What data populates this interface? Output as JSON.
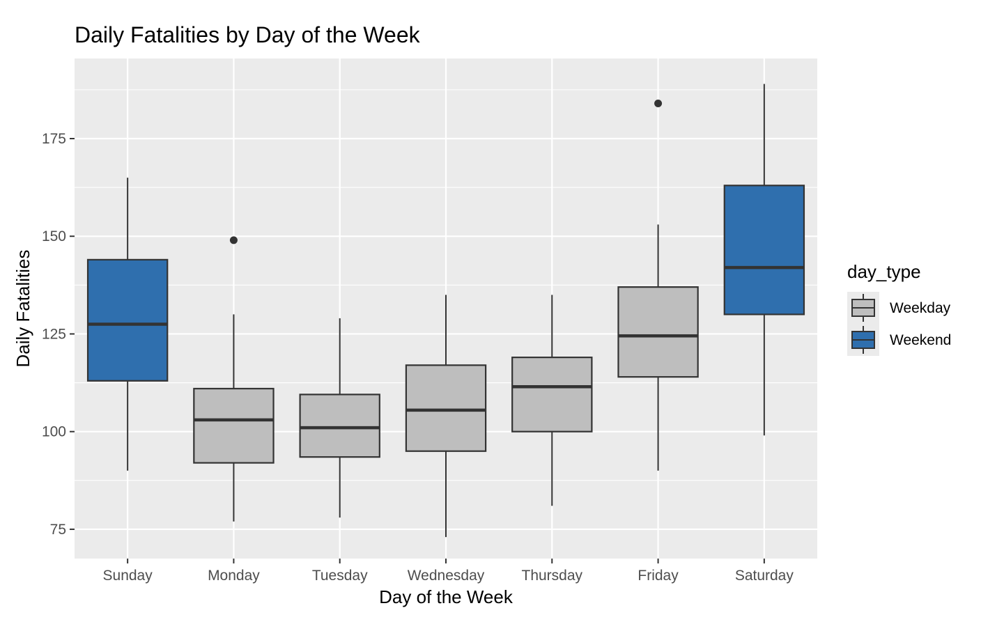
{
  "chart_data": {
    "type": "boxplot",
    "title": "Daily Fatalities by Day of the Week",
    "xlabel": "Day of the Week",
    "ylabel": "Daily Fatalities",
    "ylim": [
      67.5,
      195.5
    ],
    "yticks": [
      75,
      100,
      125,
      150,
      175
    ],
    "yminor": [
      87.5,
      112.5,
      137.5,
      162.5,
      187.5
    ],
    "grid": true,
    "legend": {
      "title": "day_type",
      "position": "right",
      "entries": [
        {
          "label": "Weekday",
          "color": "#bebebe"
        },
        {
          "label": "Weekend",
          "color": "#2f6fae"
        }
      ]
    },
    "categories": [
      "Sunday",
      "Monday",
      "Tuesday",
      "Wednesday",
      "Thursday",
      "Friday",
      "Saturday"
    ],
    "boxes": [
      {
        "day": "Sunday",
        "day_type": "Weekend",
        "min": 90,
        "q1": 113,
        "median": 127.5,
        "q3": 144,
        "max": 165,
        "outliers": []
      },
      {
        "day": "Monday",
        "day_type": "Weekday",
        "min": 77,
        "q1": 92,
        "median": 103,
        "q3": 111,
        "max": 130,
        "outliers": [
          149
        ]
      },
      {
        "day": "Tuesday",
        "day_type": "Weekday",
        "min": 78,
        "q1": 93.5,
        "median": 101,
        "q3": 109.5,
        "max": 129,
        "outliers": []
      },
      {
        "day": "Wednesday",
        "day_type": "Weekday",
        "min": 73,
        "q1": 95,
        "median": 105.5,
        "q3": 117,
        "max": 135,
        "outliers": []
      },
      {
        "day": "Thursday",
        "day_type": "Weekday",
        "min": 81,
        "q1": 100,
        "median": 111.5,
        "q3": 119,
        "max": 135,
        "outliers": []
      },
      {
        "day": "Friday",
        "day_type": "Weekday",
        "min": 90,
        "q1": 114,
        "median": 124.5,
        "q3": 137,
        "max": 153,
        "outliers": [
          184
        ]
      },
      {
        "day": "Saturday",
        "day_type": "Weekend",
        "min": 99,
        "q1": 130,
        "median": 142,
        "q3": 163,
        "max": 189,
        "outliers": []
      }
    ]
  }
}
